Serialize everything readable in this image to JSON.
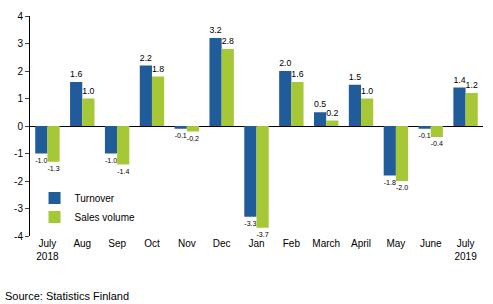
{
  "chart_data": {
    "type": "bar",
    "categories": [
      "July 2018",
      "Aug",
      "Sep",
      "Oct",
      "Nov",
      "Dec",
      "Jan",
      "Feb",
      "March",
      "April",
      "May",
      "June",
      "July 2019"
    ],
    "series": [
      {
        "name": "Turnover",
        "color": "#1f5c99",
        "values": [
          -1.0,
          1.6,
          -1.0,
          2.2,
          -0.1,
          3.2,
          -3.3,
          2.0,
          0.5,
          1.5,
          -1.8,
          -0.1,
          1.4
        ],
        "value_labels": [
          "-1.0",
          "1.6",
          "-1.0",
          "2.2",
          "-0.1",
          "3.2",
          "-3.3",
          "2.0",
          "0.5",
          "1.5",
          "-1.8",
          "-0.1",
          "1.4"
        ]
      },
      {
        "name": "Sales volume",
        "color": "#a6c837",
        "values": [
          -1.3,
          1.0,
          -1.4,
          1.8,
          -0.2,
          2.8,
          -3.7,
          1.6,
          0.2,
          1.0,
          -2.0,
          -0.4,
          1.2
        ],
        "value_labels": [
          "-1.3",
          "1.0",
          "-1.4",
          "1.8",
          "-0.2",
          "2.8",
          "-3.7",
          "1.6",
          "0.2",
          "1.0",
          "-2.0",
          "-0.4",
          "1.2"
        ]
      }
    ],
    "ylim": [
      -4,
      4
    ],
    "yticks": [
      -4,
      -3,
      -2,
      -1,
      0,
      1,
      2,
      3,
      4
    ],
    "grid": false,
    "legend": "lower left",
    "data_labels": true,
    "annotations": [
      "Source: Statistics Finland"
    ]
  }
}
